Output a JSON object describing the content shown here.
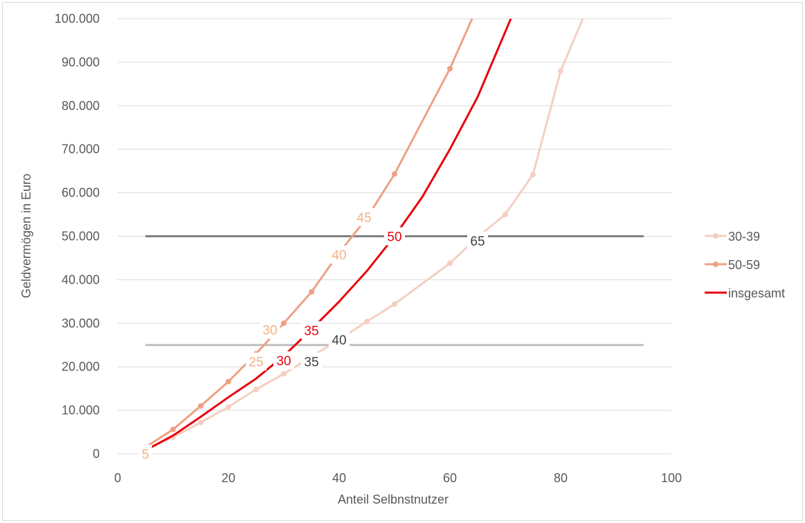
{
  "chart_data": {
    "type": "line",
    "title": "",
    "xlabel": "Anteil Selbnstnutzer",
    "ylabel": "Geldvermögen in Euro",
    "xlim": [
      0,
      100
    ],
    "ylim": [
      0,
      100000
    ],
    "x_ticks": [
      "0",
      "20",
      "40",
      "60",
      "80",
      "100"
    ],
    "y_ticks": [
      "0",
      "10.000",
      "20.000",
      "30.000",
      "40.000",
      "50.000",
      "60.000",
      "70.000",
      "80.000",
      "90.000",
      "100.000"
    ],
    "grid": true,
    "legend_position": "right",
    "series": [
      {
        "name": "30-39",
        "color": "#f4cfc2",
        "markers": true,
        "x": [
          5,
          10,
          15,
          20,
          25,
          30,
          35,
          40,
          45,
          50,
          60,
          65,
          70,
          75,
          80,
          84
        ],
        "y": [
          1000,
          3800,
          7200,
          10800,
          14800,
          18400,
          22300,
          26300,
          30400,
          34400,
          43800,
          49800,
          55000,
          64200,
          88000,
          100000
        ]
      },
      {
        "name": "50-59",
        "color": "#eea185",
        "markers": true,
        "x": [
          5,
          10,
          15,
          20,
          25,
          30,
          35,
          40,
          45,
          50,
          60,
          64
        ],
        "y": [
          1500,
          5600,
          11000,
          16600,
          23000,
          30000,
          37200,
          46200,
          54200,
          64300,
          88500,
          100000
        ]
      },
      {
        "name": "insgesamt",
        "color": "#e8000b",
        "markers": false,
        "x": [
          5,
          10,
          15,
          20,
          25,
          30,
          35,
          40,
          45,
          50,
          55,
          60,
          65,
          70,
          71
        ],
        "y": [
          800,
          4200,
          8500,
          13000,
          17300,
          22500,
          28600,
          35000,
          42000,
          50000,
          59000,
          70000,
          82000,
          97000,
          100000
        ]
      }
    ],
    "reference_lines": [
      {
        "value": 50000,
        "color": "#808080",
        "x_range": [
          5,
          95
        ]
      },
      {
        "value": 25000,
        "color": "#bfbfbf",
        "x_range": [
          5,
          95
        ]
      }
    ],
    "annotations": [
      {
        "text": "5",
        "series": "50-59",
        "x": 5,
        "y": 0,
        "color": "#f4b183"
      },
      {
        "text": "25",
        "series": "50-59",
        "x": 25,
        "y": 21200,
        "color": "#f4b183"
      },
      {
        "text": "30",
        "series": "50-59",
        "x": 27.5,
        "y": 28500,
        "color": "#f4b183"
      },
      {
        "text": "40",
        "series": "50-59",
        "x": 40,
        "y": 45800,
        "color": "#f4b183"
      },
      {
        "text": "45",
        "series": "50-59",
        "x": 44.5,
        "y": 54400,
        "color": "#f4b183"
      },
      {
        "text": "30",
        "series": "insgesamt",
        "x": 30,
        "y": 21500,
        "color": "#e8000b"
      },
      {
        "text": "35",
        "series": "insgesamt",
        "x": 35,
        "y": 28400,
        "color": "#e8000b"
      },
      {
        "text": "50",
        "series": "insgesamt",
        "x": 50,
        "y": 50000,
        "color": "#e8000b"
      },
      {
        "text": "35",
        "series": "30-39",
        "x": 35,
        "y": 21200,
        "color": "#404040"
      },
      {
        "text": "40",
        "series": "30-39",
        "x": 40,
        "y": 26200,
        "color": "#404040"
      },
      {
        "text": "65",
        "series": "30-39",
        "x": 65,
        "y": 49000,
        "color": "#404040"
      }
    ]
  }
}
